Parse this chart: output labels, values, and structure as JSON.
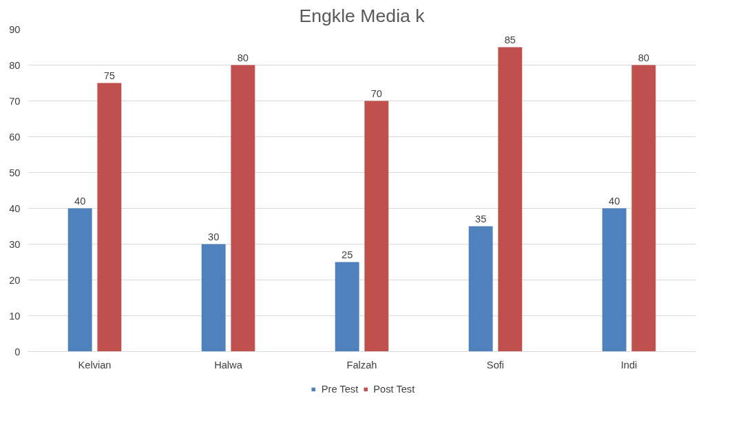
{
  "chart_data": {
    "type": "bar",
    "title": "Engkle Media k",
    "categories": [
      "Kelvian",
      "Halwa",
      "Falzah",
      "Sofi",
      "Indi"
    ],
    "series": [
      {
        "name": "Pre Test",
        "color": "#4f81bd",
        "values": [
          40,
          30,
          25,
          35,
          40
        ]
      },
      {
        "name": "Post Test",
        "color": "#c0504d",
        "values": [
          75,
          80,
          70,
          85,
          80
        ]
      }
    ],
    "ylim": [
      0,
      90
    ],
    "yticks": [
      0,
      10,
      20,
      30,
      40,
      50,
      60,
      70,
      80,
      90
    ],
    "grid": "y",
    "legend": "bottom",
    "data_labels": true
  }
}
